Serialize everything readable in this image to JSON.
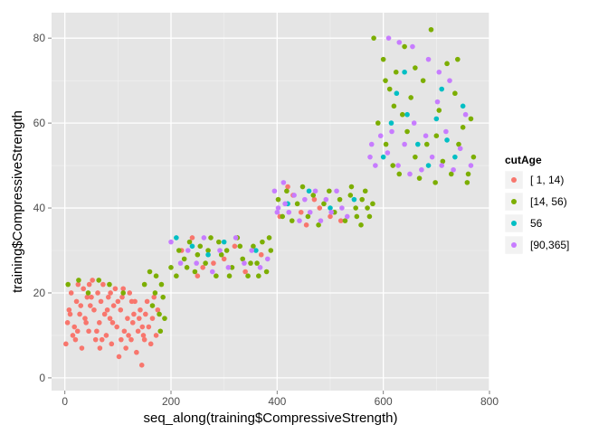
{
  "chart_data": {
    "type": "scatter",
    "title": "",
    "xlabel": "seq_along(training$CompressiveStrength)",
    "ylabel": "training$CompressiveStrength",
    "xlim": [
      -25,
      800
    ],
    "ylim": [
      -3,
      86
    ],
    "x_ticks": [
      0,
      200,
      400,
      600,
      800
    ],
    "y_ticks": [
      0,
      20,
      40,
      60,
      80
    ],
    "grid": true,
    "background": "#e5e5e5",
    "legend": {
      "title": "cutAge",
      "position": "right",
      "entries": [
        {
          "label": "[ 1, 14)",
          "color": "#F8766D"
        },
        {
          "label": "[14, 56)",
          "color": "#7CAE00"
        },
        {
          "label": "56",
          "color": "#00BFC4"
        },
        {
          "label": "[90,365]",
          "color": "#C77CFF"
        }
      ]
    },
    "series": [
      {
        "name": "[ 1, 14)",
        "color": "#F8766D",
        "points": [
          [
            2,
            8
          ],
          [
            5,
            13
          ],
          [
            8,
            16
          ],
          [
            12,
            20
          ],
          [
            15,
            10
          ],
          [
            18,
            12
          ],
          [
            22,
            18
          ],
          [
            25,
            22
          ],
          [
            28,
            15
          ],
          [
            32,
            7
          ],
          [
            35,
            21
          ],
          [
            38,
            14
          ],
          [
            42,
            19
          ],
          [
            45,
            11
          ],
          [
            48,
            17
          ],
          [
            52,
            23
          ],
          [
            55,
            16
          ],
          [
            58,
            9
          ],
          [
            62,
            20
          ],
          [
            65,
            13
          ],
          [
            68,
            18
          ],
          [
            72,
            22
          ],
          [
            75,
            15
          ],
          [
            78,
            10
          ],
          [
            82,
            19
          ],
          [
            85,
            14
          ],
          [
            88,
            8
          ],
          [
            92,
            17
          ],
          [
            95,
            21
          ],
          [
            98,
            12
          ],
          [
            102,
            5
          ],
          [
            105,
            16
          ],
          [
            108,
            19
          ],
          [
            112,
            11
          ],
          [
            115,
            7
          ],
          [
            118,
            14
          ],
          [
            122,
            20
          ],
          [
            125,
            9
          ],
          [
            128,
            13
          ],
          [
            132,
            18
          ],
          [
            135,
            6
          ],
          [
            138,
            11
          ],
          [
            142,
            16
          ],
          [
            145,
            3
          ],
          [
            148,
            10
          ],
          [
            152,
            15
          ],
          [
            155,
            18
          ],
          [
            158,
            12
          ],
          [
            162,
            8
          ],
          [
            165,
            14
          ],
          [
            168,
            19
          ],
          [
            172,
            10
          ],
          [
            175,
            16
          ],
          [
            20,
            9
          ],
          [
            40,
            13
          ],
          [
            60,
            11
          ],
          [
            80,
            16
          ],
          [
            100,
            18
          ],
          [
            120,
            10
          ],
          [
            140,
            14
          ],
          [
            30,
            17
          ],
          [
            50,
            19
          ],
          [
            70,
            9
          ],
          [
            90,
            13
          ],
          [
            110,
            21
          ],
          [
            130,
            15
          ],
          [
            150,
            9
          ],
          [
            10,
            15
          ],
          [
            24,
            11
          ],
          [
            46,
            22
          ],
          [
            66,
            7
          ],
          [
            86,
            20
          ],
          [
            106,
            9
          ],
          [
            126,
            18
          ],
          [
            146,
            12
          ],
          [
            220,
            30
          ],
          [
            260,
            26
          ],
          [
            300,
            28
          ],
          [
            340,
            25
          ],
          [
            370,
            29
          ],
          [
            240,
            33
          ],
          [
            280,
            27
          ],
          [
            320,
            31
          ],
          [
            250,
            24
          ],
          [
            405,
            38
          ],
          [
            430,
            43
          ],
          [
            455,
            36
          ],
          [
            480,
            40
          ],
          [
            500,
            38
          ],
          [
            420,
            45
          ],
          [
            470,
            42
          ],
          [
            520,
            37
          ],
          [
            445,
            39
          ]
        ]
      },
      {
        "name": "[14, 56)",
        "color": "#7CAE00",
        "points": [
          [
            6,
            22
          ],
          [
            26,
            23
          ],
          [
            44,
            20
          ],
          [
            64,
            23
          ],
          [
            84,
            22
          ],
          [
            110,
            20
          ],
          [
            150,
            22
          ],
          [
            165,
            17
          ],
          [
            170,
            20
          ],
          [
            178,
            15
          ],
          [
            182,
            22
          ],
          [
            185,
            19
          ],
          [
            188,
            14
          ],
          [
            180,
            11
          ],
          [
            172,
            24
          ],
          [
            160,
            25
          ],
          [
            200,
            26
          ],
          [
            210,
            24
          ],
          [
            225,
            28
          ],
          [
            235,
            32
          ],
          [
            245,
            25
          ],
          [
            255,
            31
          ],
          [
            265,
            27
          ],
          [
            275,
            33
          ],
          [
            285,
            24
          ],
          [
            295,
            29
          ],
          [
            305,
            30
          ],
          [
            315,
            26
          ],
          [
            325,
            33
          ],
          [
            335,
            28
          ],
          [
            345,
            24
          ],
          [
            355,
            31
          ],
          [
            362,
            27
          ],
          [
            372,
            32
          ],
          [
            380,
            25
          ],
          [
            388,
            30
          ],
          [
            215,
            30
          ],
          [
            230,
            26
          ],
          [
            250,
            29
          ],
          [
            270,
            30
          ],
          [
            290,
            32
          ],
          [
            310,
            24
          ],
          [
            330,
            31
          ],
          [
            350,
            27
          ],
          [
            365,
            24
          ],
          [
            385,
            33
          ],
          [
            402,
            42
          ],
          [
            410,
            38
          ],
          [
            418,
            44
          ],
          [
            428,
            37
          ],
          [
            438,
            41
          ],
          [
            448,
            45
          ],
          [
            458,
            38
          ],
          [
            468,
            43
          ],
          [
            478,
            36
          ],
          [
            488,
            41
          ],
          [
            498,
            44
          ],
          [
            508,
            39
          ],
          [
            518,
            42
          ],
          [
            528,
            37
          ],
          [
            538,
            43
          ],
          [
            548,
            40
          ],
          [
            558,
            36
          ],
          [
            566,
            44
          ],
          [
            574,
            38
          ],
          [
            580,
            41
          ],
          [
            540,
            45
          ],
          [
            550,
            38
          ],
          [
            560,
            42
          ],
          [
            570,
            40
          ],
          [
            582,
            80
          ],
          [
            590,
            60
          ],
          [
            600,
            75
          ],
          [
            605,
            55
          ],
          [
            612,
            68
          ],
          [
            618,
            50
          ],
          [
            624,
            72
          ],
          [
            630,
            48
          ],
          [
            636,
            62
          ],
          [
            645,
            58
          ],
          [
            652,
            66
          ],
          [
            660,
            52
          ],
          [
            668,
            47
          ],
          [
            675,
            70
          ],
          [
            682,
            55
          ],
          [
            690,
            82
          ],
          [
            698,
            46
          ],
          [
            705,
            63
          ],
          [
            712,
            51
          ],
          [
            720,
            74
          ],
          [
            728,
            48
          ],
          [
            735,
            67
          ],
          [
            742,
            55
          ],
          [
            750,
            59
          ],
          [
            758,
            46
          ],
          [
            765,
            61
          ],
          [
            770,
            52
          ],
          [
            604,
            70
          ],
          [
            620,
            64
          ],
          [
            640,
            78
          ],
          [
            660,
            73
          ],
          [
            700,
            57
          ],
          [
            740,
            75
          ],
          [
            760,
            48
          ]
        ]
      },
      {
        "name": "56",
        "color": "#00BFC4",
        "points": [
          [
            210,
            33
          ],
          [
            240,
            31
          ],
          [
            270,
            29
          ],
          [
            300,
            32
          ],
          [
            360,
            30
          ],
          [
            420,
            41
          ],
          [
            460,
            44
          ],
          [
            500,
            40
          ],
          [
            545,
            42
          ],
          [
            600,
            52
          ],
          [
            615,
            60
          ],
          [
            625,
            67
          ],
          [
            645,
            62
          ],
          [
            665,
            55
          ],
          [
            685,
            50
          ],
          [
            700,
            61
          ],
          [
            720,
            56
          ],
          [
            735,
            52
          ],
          [
            750,
            64
          ],
          [
            640,
            72
          ],
          [
            710,
            68
          ]
        ]
      },
      {
        "name": "[90,365]",
        "color": "#C77CFF",
        "points": [
          [
            200,
            32
          ],
          [
            218,
            27
          ],
          [
            232,
            30
          ],
          [
            248,
            27
          ],
          [
            262,
            33
          ],
          [
            278,
            25
          ],
          [
            292,
            30
          ],
          [
            308,
            26
          ],
          [
            322,
            33
          ],
          [
            338,
            27
          ],
          [
            352,
            30
          ],
          [
            368,
            26
          ],
          [
            382,
            28
          ],
          [
            395,
            44
          ],
          [
            402,
            40
          ],
          [
            412,
            46
          ],
          [
            422,
            39
          ],
          [
            432,
            43
          ],
          [
            442,
            37
          ],
          [
            452,
            42
          ],
          [
            462,
            39
          ],
          [
            472,
            44
          ],
          [
            482,
            37
          ],
          [
            492,
            42
          ],
          [
            502,
            39
          ],
          [
            512,
            44
          ],
          [
            522,
            40
          ],
          [
            532,
            38
          ],
          [
            400,
            39
          ],
          [
            415,
            41
          ],
          [
            575,
            52
          ],
          [
            578,
            55
          ],
          [
            585,
            50
          ],
          [
            595,
            57
          ],
          [
            608,
            53
          ],
          [
            616,
            58
          ],
          [
            628,
            50
          ],
          [
            640,
            55
          ],
          [
            650,
            48
          ],
          [
            658,
            60
          ],
          [
            672,
            49
          ],
          [
            680,
            57
          ],
          [
            692,
            52
          ],
          [
            702,
            65
          ],
          [
            710,
            50
          ],
          [
            718,
            58
          ],
          [
            732,
            49
          ],
          [
            745,
            54
          ],
          [
            755,
            62
          ],
          [
            765,
            50
          ],
          [
            610,
            80
          ],
          [
            630,
            79
          ],
          [
            655,
            78
          ],
          [
            685,
            75
          ],
          [
            705,
            72
          ],
          [
            725,
            70
          ]
        ]
      }
    ]
  }
}
